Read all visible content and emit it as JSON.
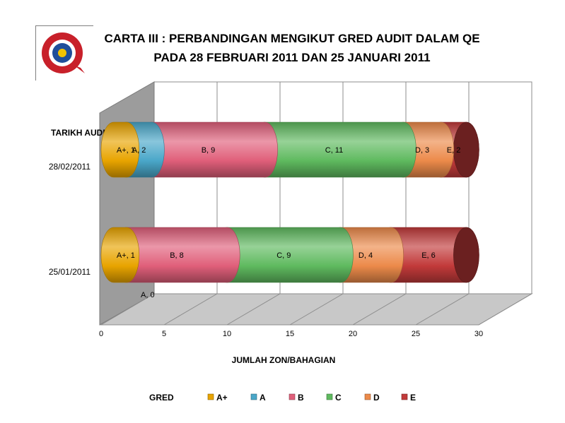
{
  "title_lines": [
    "CARTA III : PERBANDINGAN MENGIKUT GRED AUDIT DALAM QE",
    "PADA 28 FEBRUARI 2011 DAN 25 JANUARI 2011"
  ],
  "colors": {
    "A+": "#e8a400",
    "A": "#4aa7c9",
    "B": "#e05f7a",
    "C": "#5fba5f",
    "D": "#ec8a4a",
    "E": "#c23a3a"
  },
  "chart_data": {
    "type": "bar",
    "orientation": "horizontal",
    "stacked": true,
    "style": "3d-cylinder",
    "title": "CARTA III : PERBANDINGAN MENGIKUT GRED AUDIT DALAM QE PADA 28 FEBRUARI 2011 DAN 25 JANUARI 2011",
    "ylabel": "TARIKH AUDIT",
    "xlabel": "JUMLAH ZON/BAHAGIAN",
    "categories": [
      "28/02/2011",
      "25/01/2011"
    ],
    "xlim": [
      0,
      30
    ],
    "xticks": [
      "0",
      "5",
      "10",
      "15",
      "20",
      "25",
      "30"
    ],
    "grid": true,
    "legend_title": "GRED",
    "legend_position": "bottom",
    "series": [
      {
        "name": "A+",
        "values": [
          1,
          1
        ],
        "labels": [
          "A+, 1",
          "A+, 1"
        ]
      },
      {
        "name": "A",
        "values": [
          2,
          0
        ],
        "labels": [
          "A, 2",
          "A, 0"
        ]
      },
      {
        "name": "B",
        "values": [
          9,
          8
        ],
        "labels": [
          "B, 9",
          "B, 8"
        ]
      },
      {
        "name": "C",
        "values": [
          11,
          9
        ],
        "labels": [
          "C, 11",
          "C, 9"
        ]
      },
      {
        "name": "D",
        "values": [
          3,
          4
        ],
        "labels": [
          "D, 3",
          "D, 4"
        ]
      },
      {
        "name": "E",
        "values": [
          2,
          6
        ],
        "labels": [
          "E, 2",
          "E, 6"
        ]
      }
    ]
  }
}
